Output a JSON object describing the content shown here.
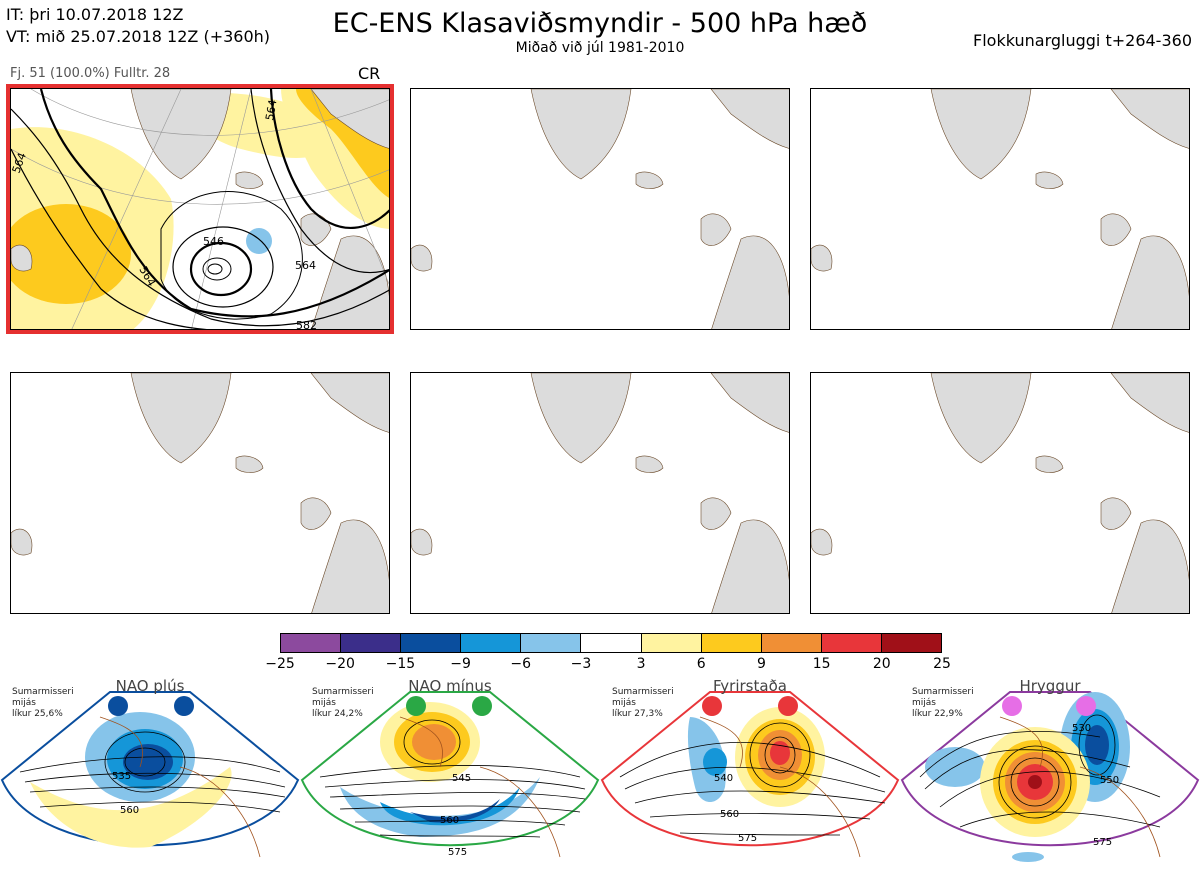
{
  "header": {
    "it_line": "IT: þri 10.07.2018 12Z",
    "vt_line": "VT: mið 25.07.2018 12Z  (+360h)",
    "title": "EC-ENS Klasaviðsmyndir - 500 hPa hæð",
    "subtitle": "Miðað við júl 1981-2010",
    "window": "Flokkunargluggi t+264-360"
  },
  "cluster": {
    "info": "Fj. 51 (100.0%)   Fulltr. 28",
    "label": "CR",
    "contour_labels": [
      "564",
      "564",
      "546",
      "564",
      "564",
      "582"
    ]
  },
  "colorbar": {
    "colors": [
      "#8c4a9e",
      "#3b2e8a",
      "#0a4e9e",
      "#1596d8",
      "#86c4ea",
      "#ffffff",
      "#fff3a0",
      "#fdca1e",
      "#f08f35",
      "#e8363a",
      "#a01018"
    ],
    "ticks": [
      "−25",
      "−20",
      "−15",
      "−9",
      "−6",
      "−3",
      "3",
      "6",
      "9",
      "15",
      "20",
      "25"
    ]
  },
  "regimes": [
    {
      "name": "NAO plús",
      "meta": "Sumarmisseri\nmijás\nlíkur 25,6%",
      "border": "#0a4e9e",
      "dot": "#0a4e9e",
      "labels": [
        "535",
        "560"
      ]
    },
    {
      "name": "NAO mínus",
      "meta": "Sumarmisseri\nmijás\nlíkur 24,2%",
      "border": "#2aa845",
      "dot": "#2aa845",
      "labels": [
        "545",
        "560",
        "575"
      ]
    },
    {
      "name": "Fyrirstaða",
      "meta": "Sumarmisseri\nmijás\nlíkur 27,3%",
      "border": "#e8363a",
      "dot": "#e8363a",
      "labels": [
        "540",
        "560",
        "575"
      ]
    },
    {
      "name": "Hryggur",
      "meta": "Sumarmisseri\nmijás\nlíkur 22,9%",
      "border": "#8b3a9e",
      "dot": "#e66ee6",
      "labels": [
        "530",
        "550",
        "575"
      ]
    }
  ]
}
